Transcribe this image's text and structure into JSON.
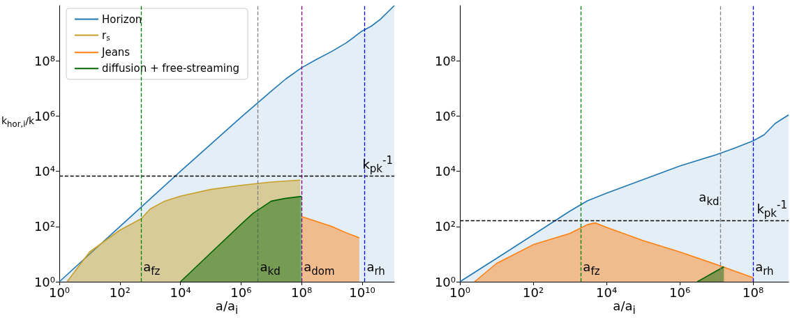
{
  "chart_data": [
    {
      "type": "area",
      "xlabel": "a/a$_{i}$",
      "ylabel": "k$_{hor,i}$/k",
      "log": "xy",
      "legend": "top left",
      "grid": false,
      "xlim": [
        1,
        115000000000.0
      ],
      "ylim": [
        1,
        10000000000.0
      ],
      "xticks": [
        {
          "value": 1,
          "label": "10⁰"
        },
        {
          "value": 100,
          "label": "10²"
        },
        {
          "value": 10000.0,
          "label": "10⁴"
        },
        {
          "value": 1000000.0,
          "label": "10⁶"
        },
        {
          "value": 100000000.0,
          "label": "10⁸"
        },
        {
          "value": 10000000000.0,
          "label": "10¹⁰"
        }
      ],
      "yticks": [
        {
          "value": 1,
          "label": "10⁰"
        },
        {
          "value": 100,
          "label": "10²"
        },
        {
          "value": 10000.0,
          "label": "10⁴"
        },
        {
          "value": 1000000.0,
          "label": "10⁶"
        },
        {
          "value": 100000000.0,
          "label": "10⁸"
        }
      ],
      "series": [
        {
          "name": "Horizon",
          "color": "#1f77b4",
          "x": [
            1,
            100,
            10000.0,
            1000000.0,
            10000000.0,
            30000000.0,
            100000000.0,
            300000000.0,
            1000000000.0,
            3000000000.0,
            10000000000.0,
            20000000000.0,
            40000000000.0,
            115000000000.0
          ],
          "values": [
            1,
            100,
            10000.0,
            900000.0,
            8000000.0,
            22000000.0,
            56000000.0,
            110000000.0,
            220000000.0,
            450000000.0,
            1200000000.0,
            1800000000.0,
            3200000000.0,
            10000000000.0
          ]
        },
        {
          "name": "r$_{s}$",
          "color": "#c8a02a",
          "x": [
            1.8,
            10,
            100,
            500,
            1000,
            3000,
            10000.0,
            100000.0,
            1000000.0,
            10000000.0,
            90000000.0
          ],
          "values": [
            1,
            12,
            74,
            190,
            430,
            830,
            1260,
            2200,
            3100,
            4100,
            4800
          ]
        },
        {
          "name": "Jeans",
          "color": "#ff7f0e",
          "x": [
            100000000.0,
            1000000000.0,
            3000000000.0,
            8000000000.0
          ],
          "values": [
            230,
            100,
            59,
            39
          ]
        },
        {
          "name": "diffusion + free-streaming",
          "color": "#006400",
          "x": [
            10000.0,
            100000.0,
            1000000.0,
            2500000.0,
            10000000.0,
            30000000.0,
            100000000.0
          ],
          "values": [
            1,
            11,
            120,
            300,
            830,
            1050,
            1230
          ]
        }
      ],
      "ref_lines": [
        {
          "axis": "y",
          "value": 6600,
          "color": "#000000",
          "line_style": "dashed",
          "label": "k$_{pk}$$^{-1}$"
        },
        {
          "axis": "x",
          "value": 500,
          "color": "#008000",
          "line_style": "dashed"
        },
        {
          "axis": "x",
          "value": 3600000.0,
          "color": "#808080",
          "line_style": "dashed"
        },
        {
          "axis": "x",
          "value": 100000000.0,
          "color": "#800080",
          "line_style": "dashed"
        },
        {
          "axis": "x",
          "value": 12000000000.0,
          "color": "#0000ff",
          "line_style": "dashed"
        }
      ],
      "annotations": [
        {
          "text": "a$_{fz}$",
          "x": 500,
          "y": 2.5
        },
        {
          "text": "a$_{kd}$",
          "x": 3600000.0,
          "y": 2.5
        },
        {
          "text": "a$_{dom}$",
          "x": 100000000.0,
          "y": 2.5
        },
        {
          "text": "a$_{rh}$",
          "x": 12000000000.0,
          "y": 2.5
        }
      ]
    },
    {
      "type": "area",
      "xlabel": "a/a$_{i}$",
      "log": "xy",
      "grid": false,
      "xlim": [
        1,
        930000000.0
      ],
      "ylim": [
        1,
        10000000000.0
      ],
      "xticks": [
        {
          "value": 1,
          "label": "10⁰"
        },
        {
          "value": 100,
          "label": "10²"
        },
        {
          "value": 10000.0,
          "label": "10⁴"
        },
        {
          "value": 1000000.0,
          "label": "10⁶"
        },
        {
          "value": 100000000.0,
          "label": "10⁸"
        }
      ],
      "yticks": [
        {
          "value": 1,
          "label": "10⁰"
        },
        {
          "value": 100,
          "label": "10²"
        },
        {
          "value": 10000.0,
          "label": "10⁴"
        },
        {
          "value": 1000000.0,
          "label": "10⁶"
        },
        {
          "value": 100000000.0,
          "label": "10⁸"
        }
      ],
      "series": [
        {
          "color": "#1f77b4",
          "x": [
            1,
            10,
            100,
            1000,
            3000,
            10000.0,
            100000.0,
            1000000.0,
            10000000.0,
            30000000.0,
            100000000.0,
            200000000.0,
            400000000.0,
            930000000.0
          ],
          "values": [
            1,
            7,
            50,
            360,
            850,
            1600,
            5000,
            15500,
            40000,
            68000,
            126000.0,
            210000.0,
            540000.0,
            1100000.0
          ]
        },
        {
          "color": "#ff7f0e",
          "x": [
            2.5,
            10,
            100,
            1000,
            3000,
            5000,
            10000.0,
            100000.0,
            1000000.0,
            10000000.0,
            100000000.0
          ],
          "values": [
            1,
            4.6,
            22,
            56,
            117,
            135,
            93,
            31,
            12,
            4.2,
            1.4
          ]
        },
        {
          "color": "#006400",
          "x": [
            3000000.0,
            16000000.0
          ],
          "values": [
            1,
            3.5
          ]
        }
      ],
      "ref_lines": [
        {
          "axis": "y",
          "value": 160,
          "color": "#000000",
          "line_style": "dashed",
          "label": "k$_{pk}$$^{-1}$"
        },
        {
          "axis": "x",
          "value": 2000,
          "color": "#008000",
          "line_style": "dashed"
        },
        {
          "axis": "x",
          "value": 13000000.0,
          "color": "#808080",
          "line_style": "dashed",
          "label": "a$_{kd}$"
        },
        {
          "axis": "x",
          "value": 100000000.0,
          "color": "#0000ff",
          "line_style": "dashed"
        }
      ],
      "annotations": [
        {
          "text": "a$_{fz}$",
          "x": 2000,
          "y": 2.5
        },
        {
          "text": "a$_{rh}$",
          "x": 100000000.0,
          "y": 2.5
        }
      ]
    }
  ]
}
